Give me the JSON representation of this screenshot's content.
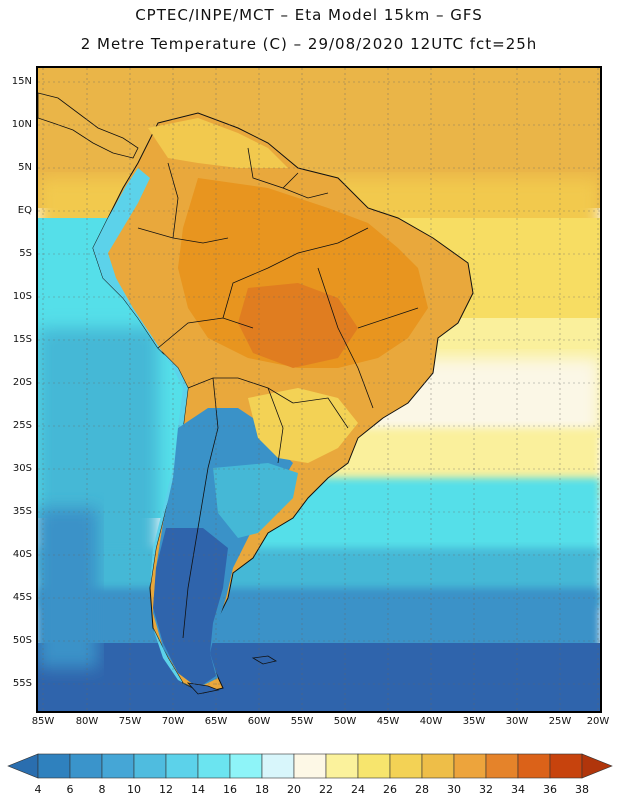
{
  "header": {
    "title_line1": "CPTEC/INPE/MCT –  Eta Model 15km – GFS",
    "title_line2": "2 Metre Temperature (C) – 29/08/2020 12UTC fct=25h"
  },
  "map": {
    "lat_labels": [
      "15N",
      "10N",
      "5N",
      "EQ",
      "5S",
      "10S",
      "15S",
      "20S",
      "25S",
      "30S",
      "35S",
      "40S",
      "45S",
      "50S",
      "55S"
    ],
    "lon_labels": [
      "85W",
      "80W",
      "75W",
      "70W",
      "65W",
      "60W",
      "55W",
      "50W",
      "45W",
      "40W",
      "35W",
      "30W",
      "25W",
      "20W"
    ],
    "grid": "dotted",
    "ocean_bands": [
      {
        "color": "#eab548"
      },
      {
        "color": "#f2c94e"
      },
      {
        "color": "#f7dd63"
      },
      {
        "color": "#faf09c"
      },
      {
        "color": "#fbf7e6"
      },
      {
        "color": "#55dfe9"
      },
      {
        "color": "#45b8d6"
      },
      {
        "color": "#3a92c8"
      },
      {
        "color": "#2f64ac"
      }
    ]
  },
  "colorbar": {
    "labels": [
      "4",
      "6",
      "8",
      "10",
      "12",
      "14",
      "16",
      "18",
      "20",
      "22",
      "24",
      "26",
      "28",
      "30",
      "32",
      "34",
      "36",
      "38"
    ],
    "colors": [
      "#2a6eaf",
      "#2f81be",
      "#3a94cb",
      "#45a6d6",
      "#4fbcdf",
      "#5cd2ea",
      "#6be4f0",
      "#8ef4f8",
      "#d8f6fb",
      "#fdf8e6",
      "#fbf29c",
      "#f7e56d",
      "#f3d255",
      "#eebe48",
      "#eda43c",
      "#e5832a",
      "#db6219",
      "#c7430d",
      "#b0350b"
    ]
  }
}
